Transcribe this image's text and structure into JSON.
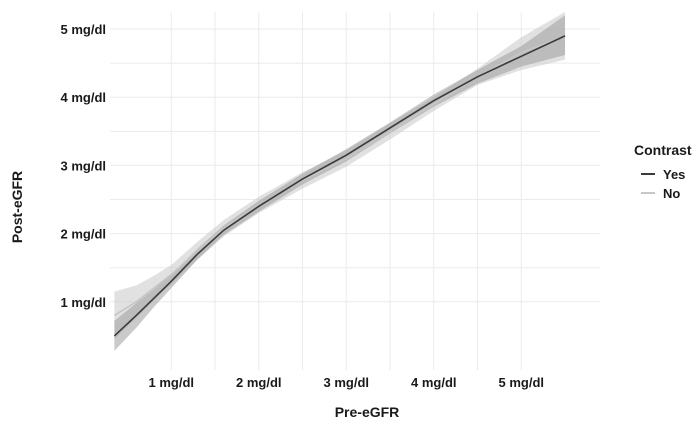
{
  "chart_data": {
    "type": "line",
    "title": "",
    "xlabel": "Pre-eGFR",
    "ylabel": "Post-eGFR",
    "x_ticks": [
      "1 mg/dl",
      "2 mg/dl",
      "3 mg/dl",
      "4 mg/dl",
      "5 mg/dl"
    ],
    "y_ticks": [
      "1 mg/dl",
      "2 mg/dl",
      "3 mg/dl",
      "4 mg/dl",
      "5 mg/dl"
    ],
    "x_tick_values": [
      1,
      2,
      3,
      4,
      5
    ],
    "y_tick_values": [
      1,
      2,
      3,
      4,
      5
    ],
    "xlim": [
      0.3,
      5.9
    ],
    "ylim": [
      0.0,
      5.25
    ],
    "grid": true,
    "legend": {
      "title": "Contrast",
      "position": "right"
    },
    "series": [
      {
        "name": "Yes",
        "color": "#3a3a3a",
        "x": [
          0.35,
          0.6,
          0.8,
          1.0,
          1.3,
          1.6,
          2.0,
          2.5,
          3.0,
          3.5,
          4.0,
          4.5,
          5.0,
          5.5
        ],
        "y": [
          0.5,
          0.8,
          1.05,
          1.3,
          1.7,
          2.05,
          2.4,
          2.8,
          3.15,
          3.55,
          3.95,
          4.3,
          4.6,
          4.9
        ],
        "lower": [
          0.28,
          0.62,
          0.92,
          1.2,
          1.62,
          1.98,
          2.32,
          2.72,
          3.06,
          3.47,
          3.86,
          4.2,
          4.45,
          4.62
        ],
        "upper": [
          0.72,
          0.98,
          1.18,
          1.4,
          1.78,
          2.12,
          2.48,
          2.88,
          3.24,
          3.63,
          4.04,
          4.4,
          4.75,
          5.2
        ]
      },
      {
        "name": "No",
        "color": "#c6c6c6",
        "x": [
          0.35,
          0.6,
          0.8,
          1.0,
          1.3,
          1.6,
          2.0,
          2.5,
          3.0,
          3.5,
          4.0,
          4.5,
          5.0,
          5.5
        ],
        "y": [
          0.8,
          1.0,
          1.2,
          1.4,
          1.75,
          2.08,
          2.42,
          2.78,
          3.1,
          3.5,
          3.9,
          4.3,
          4.65,
          4.9
        ],
        "lower": [
          0.45,
          0.76,
          1.02,
          1.26,
          1.62,
          1.96,
          2.3,
          2.66,
          2.98,
          3.38,
          3.8,
          4.18,
          4.4,
          4.55
        ],
        "upper": [
          1.15,
          1.24,
          1.38,
          1.54,
          1.88,
          2.2,
          2.54,
          2.9,
          3.22,
          3.62,
          4.0,
          4.42,
          4.88,
          5.25
        ]
      }
    ]
  }
}
